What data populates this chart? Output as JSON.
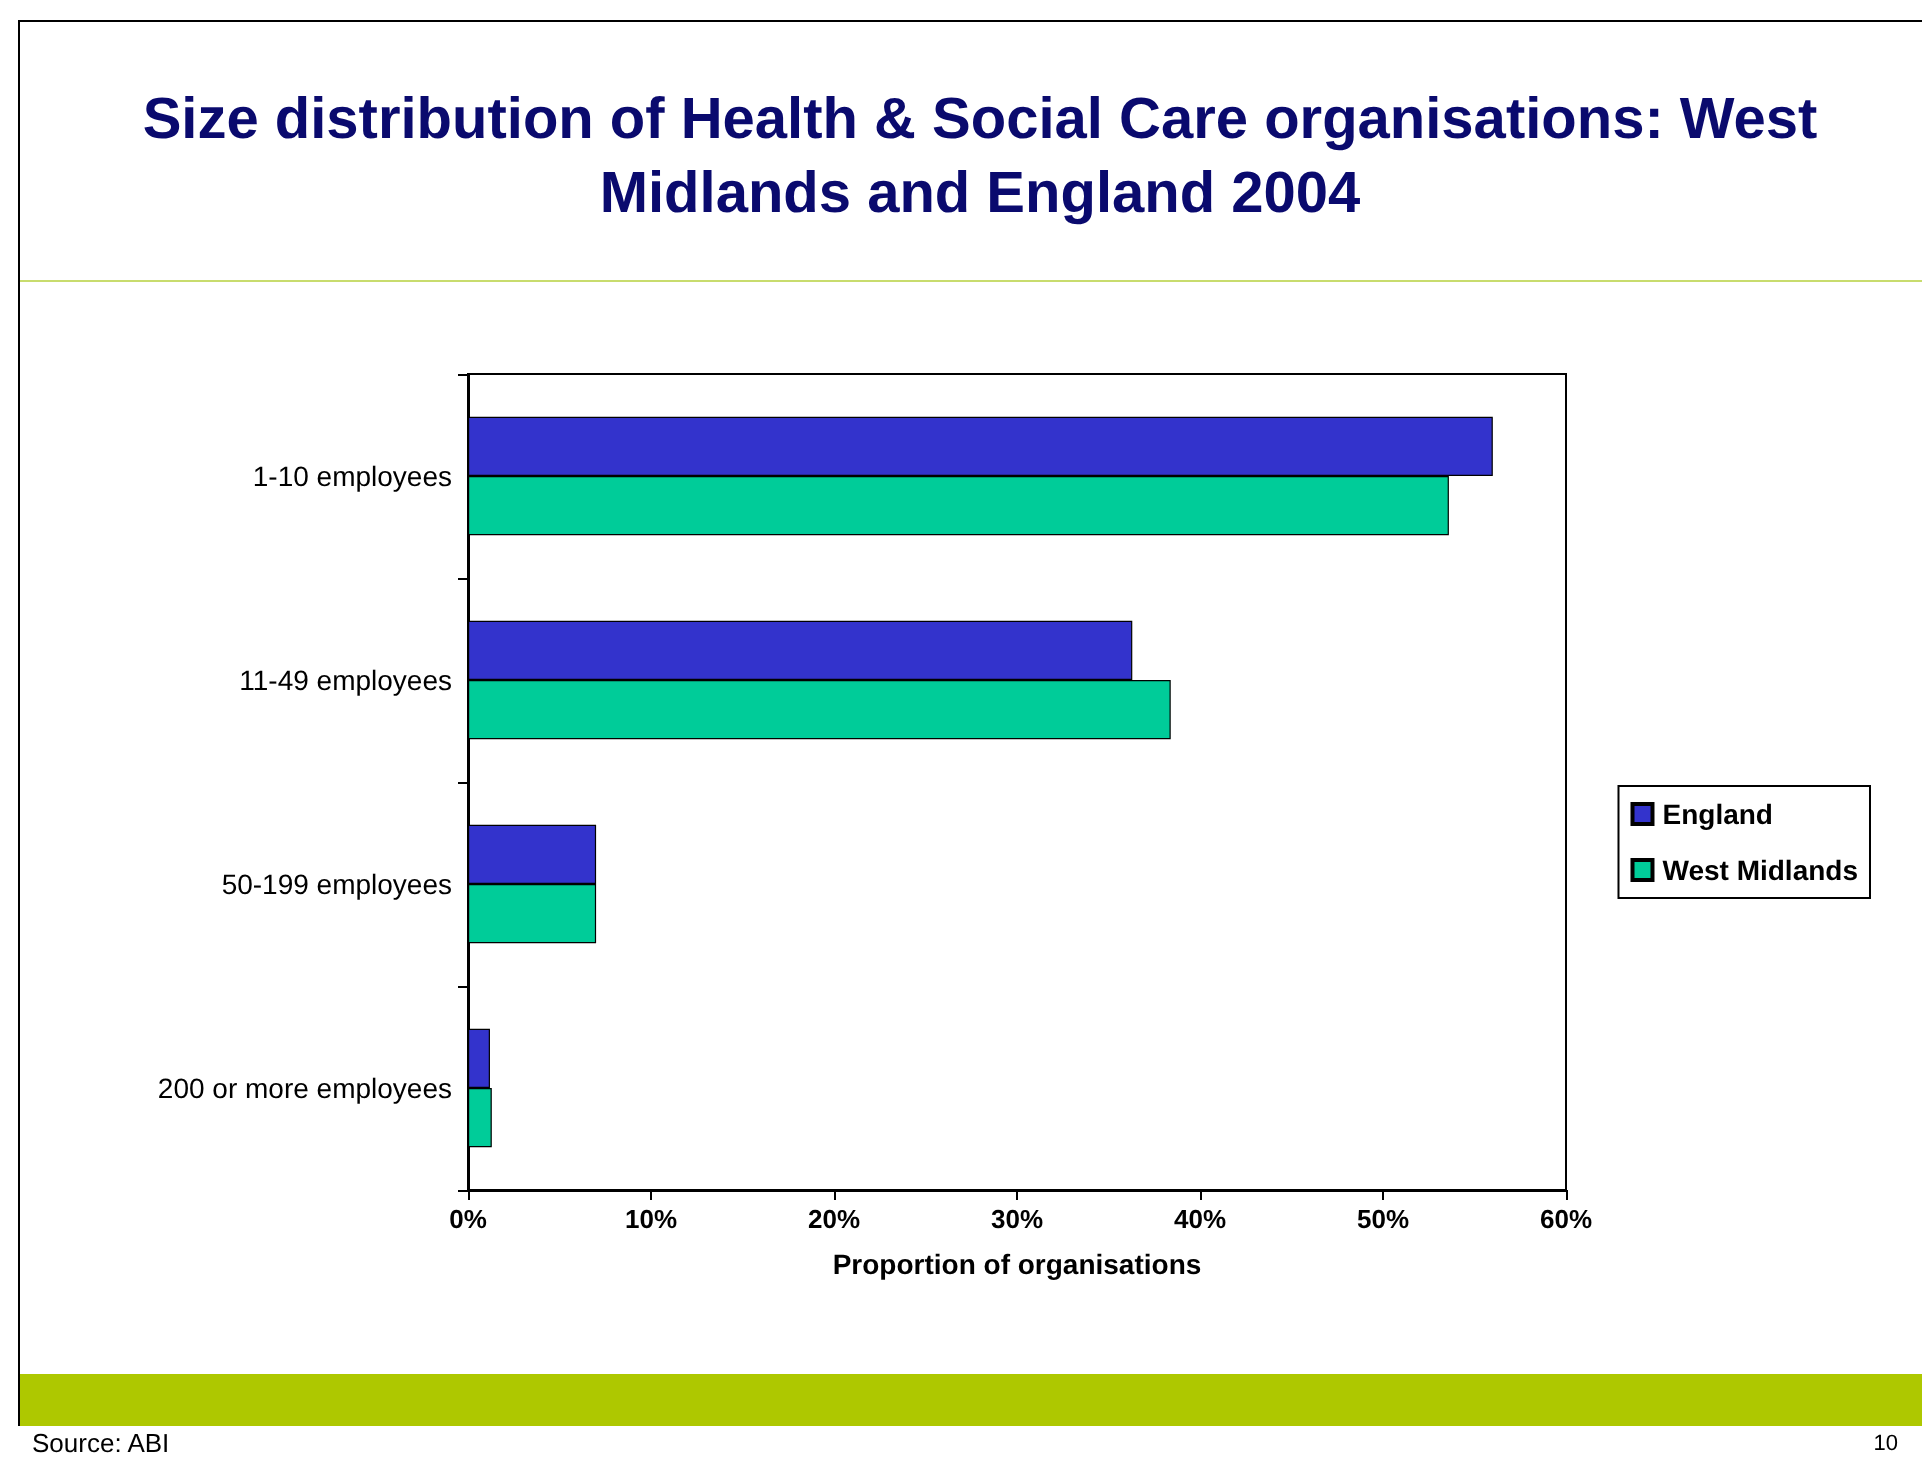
{
  "chart_data": {
    "type": "bar",
    "orientation": "horizontal",
    "title": "Size distribution of Health & Social Care organisations: West Midlands and England 2004",
    "xlabel": "Proportion of organisations",
    "categories": [
      "1-10 employees",
      "11-49 employees",
      "50-199 employees",
      "200 or more employees"
    ],
    "series": [
      {
        "name": "England",
        "color": "#3333cc",
        "values": [
          56,
          36.3,
          7,
          1.2
        ]
      },
      {
        "name": "West Midlands",
        "color": "#00cc99",
        "values": [
          53.6,
          38.4,
          7,
          1.3
        ]
      }
    ],
    "xlim": [
      0,
      60
    ],
    "xticks": [
      {
        "value": 0,
        "label": "0%"
      },
      {
        "value": 10,
        "label": "10%"
      },
      {
        "value": 20,
        "label": "20%"
      },
      {
        "value": 30,
        "label": "30%"
      },
      {
        "value": 40,
        "label": "40%"
      },
      {
        "value": 50,
        "label": "50%"
      },
      {
        "value": 60,
        "label": "60%"
      }
    ],
    "grid": false,
    "legend": "right",
    "annotations": [
      "Source: ABI",
      "10"
    ]
  }
}
